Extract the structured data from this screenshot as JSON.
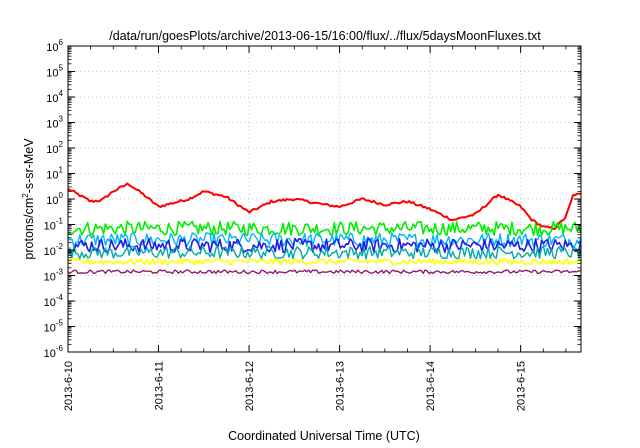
{
  "chart_data": {
    "type": "line",
    "title": "/data/run/goesPlots/archive/2013-06-15/16:00/flux/../flux/5daysMoonFluxes.txt",
    "xlabel": "Coordinated Universal Time (UTC)",
    "ylabel_parts": [
      "protons/cm",
      "2",
      "-s-sr-MeV"
    ],
    "y_scale": "log",
    "ylim": [
      1e-06,
      1000000.0
    ],
    "y_ticks": [
      {
        "base": "10",
        "exp": "-6"
      },
      {
        "base": "10",
        "exp": "-5"
      },
      {
        "base": "10",
        "exp": "-4"
      },
      {
        "base": "10",
        "exp": "-3"
      },
      {
        "base": "10",
        "exp": "-2"
      },
      {
        "base": "10",
        "exp": "-1"
      },
      {
        "base": "10",
        "exp": "0"
      },
      {
        "base": "10",
        "exp": "1"
      },
      {
        "base": "10",
        "exp": "2"
      },
      {
        "base": "10",
        "exp": "3"
      },
      {
        "base": "10",
        "exp": "4"
      },
      {
        "base": "10",
        "exp": "5"
      },
      {
        "base": "10",
        "exp": "6"
      }
    ],
    "x_ticks": [
      "2013-6-10",
      "2013-6-11",
      "2013-6-12",
      "2013-6-13",
      "2013-6-14",
      "2013-6-15"
    ],
    "xlim": [
      "2013-06-10T00:00",
      "2013-06-15T16:00"
    ],
    "grid": true,
    "series": [
      {
        "color": "#ff0000",
        "width": 2.0,
        "noise": 0.05,
        "x": [
          "2013-06-10T00:00",
          "2013-06-10T06:00",
          "2013-06-10T09:00",
          "2013-06-10T12:00",
          "2013-06-10T16:00",
          "2013-06-10T20:00",
          "2013-06-11T00:00",
          "2013-06-11T08:00",
          "2013-06-11T12:00",
          "2013-06-11T18:00",
          "2013-06-12T00:00",
          "2013-06-12T06:00",
          "2013-06-12T12:00",
          "2013-06-12T20:00",
          "2013-06-13T00:00",
          "2013-06-13T06:00",
          "2013-06-13T12:00",
          "2013-06-13T18:00",
          "2013-06-14T00:00",
          "2013-06-14T06:00",
          "2013-06-14T12:00",
          "2013-06-14T18:00",
          "2013-06-15T00:00",
          "2013-06-15T03:00",
          "2013-06-15T06:00",
          "2013-06-15T09:00",
          "2013-06-15T12:00",
          "2013-06-15T14:00",
          "2013-06-15T16:00"
        ],
        "y": [
          2.5,
          0.8,
          0.9,
          2.0,
          4.0,
          1.5,
          0.5,
          1.0,
          2.0,
          1.2,
          0.3,
          0.8,
          1.0,
          0.6,
          0.5,
          1.0,
          0.6,
          0.8,
          0.4,
          0.15,
          0.25,
          1.5,
          0.5,
          0.15,
          0.08,
          0.07,
          0.2,
          1.5,
          1.5
        ]
      },
      {
        "color": "#00ee00",
        "width": 1.6,
        "noise": 0.28,
        "x": [
          "2013-06-10T00:00",
          "2013-06-15T16:00"
        ],
        "y": [
          0.07,
          0.07
        ]
      },
      {
        "color": "#00b4ff",
        "width": 1.4,
        "noise": 0.28,
        "x": [
          "2013-06-10T00:00",
          "2013-06-15T16:00"
        ],
        "y": [
          0.025,
          0.025
        ]
      },
      {
        "color": "#1e1ee6",
        "width": 1.6,
        "noise": 0.28,
        "x": [
          "2013-06-10T00:00",
          "2013-06-15T16:00"
        ],
        "y": [
          0.015,
          0.015
        ]
      },
      {
        "color": "#00aaaa",
        "width": 1.4,
        "noise": 0.25,
        "x": [
          "2013-06-10T00:00",
          "2013-06-15T16:00"
        ],
        "y": [
          0.008,
          0.008
        ]
      },
      {
        "color": "#ffff00",
        "width": 1.6,
        "noise": 0.12,
        "x": [
          "2013-06-10T00:00",
          "2013-06-15T16:00"
        ],
        "y": [
          0.0035,
          0.0035
        ]
      },
      {
        "color": "#8c1e6e",
        "width": 1.4,
        "noise": 0.07,
        "x": [
          "2013-06-10T00:00",
          "2013-06-15T16:00"
        ],
        "y": [
          0.0014,
          0.0014
        ]
      }
    ]
  }
}
